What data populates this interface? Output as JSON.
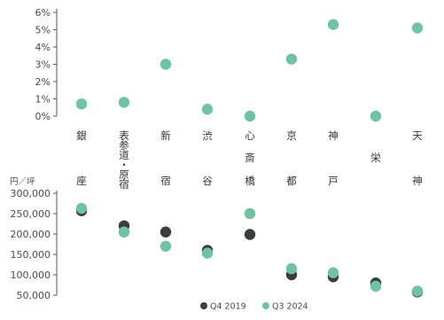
{
  "colors": {
    "q4_2019": "#3a3d3c",
    "q3_2024": "#6dc4a1",
    "axis": "#555555",
    "text": "#333333"
  },
  "chart_data": [
    {
      "type": "scatter",
      "categories": [
        "銀座",
        "表参道・原宿",
        "新宿",
        "渋谷",
        "心斎橋",
        "京都",
        "神戸",
        "栄",
        "天神"
      ],
      "category_lines": [
        [
          "銀",
          "",
          "座"
        ],
        [
          "表",
          "参",
          "道",
          "・",
          "原",
          "宿"
        ],
        [
          "新",
          "",
          "宿"
        ],
        [
          "渋",
          "",
          "谷"
        ],
        [
          "心",
          "斎",
          "橋"
        ],
        [
          "京",
          "",
          "都"
        ],
        [
          "神",
          "",
          "戸"
        ],
        [
          "",
          "栄",
          ""
        ],
        [
          "天",
          "",
          "神"
        ]
      ],
      "series": [
        {
          "values": [
            0.7,
            0.8,
            3.0,
            0.4,
            0.0,
            3.3,
            5.3,
            0.0,
            5.1
          ]
        }
      ],
      "ylim": [
        0,
        6
      ],
      "yticks": [
        0,
        1,
        2,
        3,
        4,
        5,
        6
      ],
      "ytick_labels": [
        "0%",
        "1%",
        "2%",
        "3%",
        "4%",
        "5%",
        "6%"
      ],
      "grid": false
    },
    {
      "type": "scatter",
      "categories": [
        "銀座",
        "表参道・原宿",
        "新宿",
        "渋谷",
        "心斎橋",
        "京都",
        "神戸",
        "栄",
        "天神"
      ],
      "ylabel": "円／坪",
      "series": [
        {
          "name": "Q4 2019",
          "values": [
            257000,
            220000,
            205000,
            160000,
            199000,
            100000,
            95000,
            80000,
            58000
          ]
        },
        {
          "name": "Q3 2024",
          "values": [
            263000,
            205000,
            170000,
            153000,
            250000,
            115000,
            105000,
            72000,
            60000
          ]
        }
      ],
      "ylim": [
        50000,
        300000
      ],
      "yticks": [
        50000,
        100000,
        150000,
        200000,
        250000,
        300000
      ],
      "ytick_labels": [
        "50,000",
        "100,000",
        "150,000",
        "200,000",
        "250,000",
        "300,000"
      ],
      "legend_position": "bottom",
      "grid": false
    }
  ]
}
